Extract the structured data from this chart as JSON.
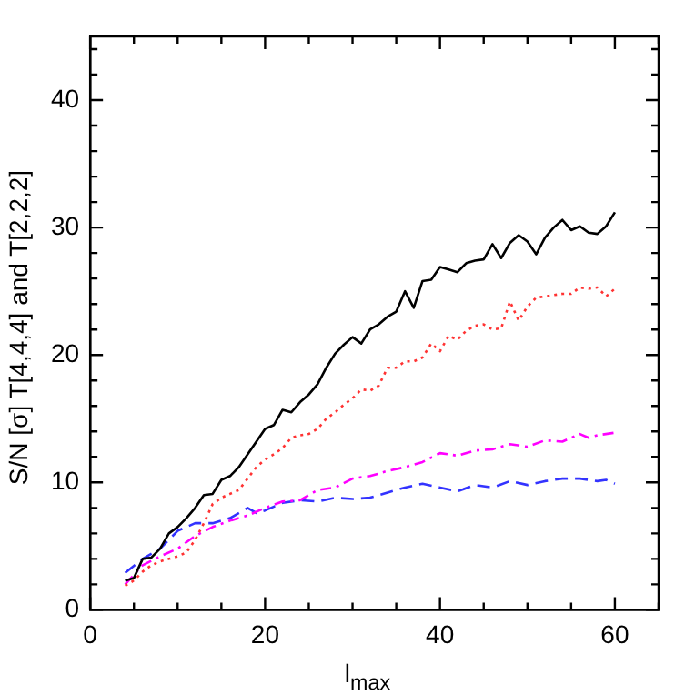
{
  "chart_data": {
    "type": "line",
    "xlabel": "l$_{max}$",
    "ylabel": "S/N [σ] T[4,4,4] and T[2,2,2]",
    "xlim": [
      0,
      65
    ],
    "ylim": [
      0,
      45
    ],
    "xticks": [
      0,
      {
        "value": 5,
        "label": null
      },
      {
        "value": 10,
        "label": null
      },
      {
        "value": 15,
        "label": null
      },
      20,
      {
        "value": 25,
        "label": null
      },
      {
        "value": 30,
        "label": null
      },
      {
        "value": 35,
        "label": null
      },
      40,
      {
        "value": 45,
        "label": null
      },
      {
        "value": 50,
        "label": null
      },
      {
        "value": 55,
        "label": null
      },
      60,
      {
        "value": 65,
        "label": null
      }
    ],
    "yticks": [
      0,
      {
        "value": 2,
        "label": null
      },
      {
        "value": 4,
        "label": null
      },
      {
        "value": 6,
        "label": null
      },
      {
        "value": 8,
        "label": null
      },
      10,
      {
        "value": 12,
        "label": null
      },
      {
        "value": 14,
        "label": null
      },
      {
        "value": 16,
        "label": null
      },
      {
        "value": 18,
        "label": null
      },
      20,
      {
        "value": 22,
        "label": null
      },
      {
        "value": 24,
        "label": null
      },
      {
        "value": 26,
        "label": null
      },
      {
        "value": 28,
        "label": null
      },
      30,
      {
        "value": 32,
        "label": null
      },
      {
        "value": 34,
        "label": null
      },
      {
        "value": 36,
        "label": null
      },
      {
        "value": 38,
        "label": null
      },
      40,
      {
        "value": 42,
        "label": null
      },
      {
        "value": 44,
        "label": null
      }
    ],
    "grid": false,
    "legend": false,
    "marker": "none",
    "series": [
      {
        "color": "#000000",
        "line_style": "solid",
        "x": [
          4,
          5,
          6,
          7,
          8,
          9,
          10,
          11,
          12,
          13,
          14,
          15,
          16,
          17,
          18,
          19,
          20,
          21,
          22,
          23,
          24,
          25,
          26,
          27,
          28,
          29,
          30,
          31,
          32,
          33,
          34,
          35,
          36,
          37,
          38,
          39,
          40,
          41,
          42,
          43,
          44,
          45,
          46,
          47,
          48,
          49,
          50,
          51,
          52,
          53,
          54,
          55,
          56,
          57,
          58,
          59,
          60
        ],
        "values": [
          2.3,
          2.5,
          4,
          4.1,
          4.8,
          6,
          6.5,
          7.2,
          8,
          9,
          9.1,
          10.2,
          10.5,
          11.2,
          12.2,
          13.2,
          14.2,
          14.5,
          15.7,
          15.5,
          16.3,
          16.9,
          17.7,
          19,
          20.1,
          20.8,
          21.4,
          20.9,
          22,
          22.4,
          23,
          23.4,
          25,
          23.7,
          25.8,
          25.9,
          26.9,
          26.7,
          26.5,
          27.2,
          27.4,
          27.5,
          28.7,
          27.6,
          28.8,
          29.4,
          28.9,
          27.9,
          29.2,
          30,
          30.6,
          29.8,
          30.1,
          29.6,
          29.5,
          30.1,
          31.2
        ]
      },
      {
        "color": "#ff3333",
        "line_style": "dotted",
        "x": [
          4,
          5,
          6,
          7,
          8,
          9,
          10,
          11,
          12,
          13,
          14,
          15,
          16,
          17,
          18,
          19,
          20,
          21,
          22,
          23,
          24,
          25,
          26,
          27,
          28,
          29,
          30,
          31,
          32,
          33,
          34,
          35,
          36,
          37,
          38,
          39,
          40,
          41,
          42,
          43,
          44,
          45,
          46,
          47,
          48,
          49,
          50,
          51,
          52,
          53,
          54,
          55,
          56,
          57,
          58,
          59,
          60
        ],
        "values": [
          1.9,
          2.3,
          3,
          3.5,
          3.8,
          4,
          4.2,
          4.5,
          5.5,
          6.8,
          8.3,
          8.8,
          9.1,
          9.4,
          10.3,
          11.2,
          11.8,
          12.2,
          12.7,
          13.5,
          13.7,
          13.8,
          14.2,
          15,
          15.5,
          16.1,
          16.6,
          17.3,
          17.2,
          17.6,
          19,
          19,
          19.5,
          19.5,
          19.8,
          20.9,
          20.3,
          21.5,
          21.2,
          21.9,
          22.3,
          22.4,
          22,
          22.1,
          24.2,
          22.7,
          23.8,
          24.5,
          24.6,
          24.7,
          24.8,
          24.8,
          25.3,
          25.2,
          25.3,
          24.6,
          25.2
        ]
      },
      {
        "color": "#ff00ff",
        "line_style": "dashdot",
        "x": [
          4,
          6,
          8,
          10,
          12,
          14,
          16,
          18,
          20,
          22,
          24,
          26,
          28,
          30,
          32,
          34,
          36,
          38,
          40,
          42,
          44,
          46,
          48,
          50,
          52,
          54,
          56,
          57,
          58,
          60
        ],
        "values": [
          2,
          3.5,
          4.2,
          4.8,
          5.8,
          6.5,
          7,
          7.4,
          8,
          8.5,
          8.6,
          9.4,
          9.6,
          10.3,
          10.5,
          10.9,
          11.2,
          11.6,
          12.3,
          12.1,
          12.5,
          12.6,
          13,
          12.8,
          13.3,
          13.2,
          13.8,
          13.5,
          13.7,
          13.9
        ]
      },
      {
        "color": "#3333ff",
        "line_style": "dashed",
        "x": [
          4,
          6,
          8,
          10,
          12,
          14,
          16,
          18,
          19,
          20,
          22,
          24,
          26,
          28,
          30,
          32,
          34,
          36,
          38,
          40,
          42,
          44,
          46,
          48,
          50,
          52,
          54,
          56,
          58,
          59,
          60
        ],
        "values": [
          2.9,
          4,
          4.8,
          6.2,
          6.8,
          6.8,
          7.2,
          8,
          7.6,
          7.8,
          8.4,
          8.6,
          8.5,
          8.8,
          8.7,
          8.8,
          9.2,
          9.6,
          9.9,
          9.6,
          9.3,
          9.8,
          9.6,
          10.1,
          9.8,
          10.1,
          10.3,
          10.3,
          10.1,
          10.2,
          9.9
        ]
      }
    ]
  }
}
